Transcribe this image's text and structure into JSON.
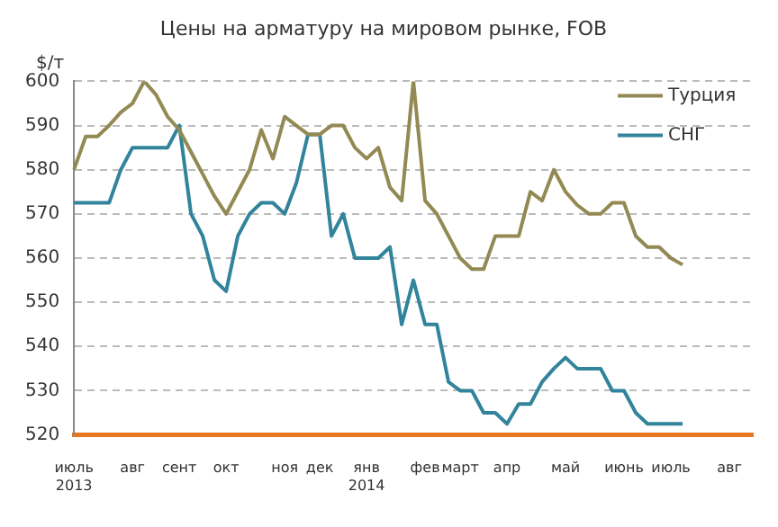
{
  "chart_data": {
    "type": "line",
    "title": "Цены на арматуру на мировом рынке, FOB",
    "ylabel": "$/т",
    "categories": [
      "июль 2013",
      null,
      null,
      null,
      null,
      "авг",
      null,
      null,
      null,
      "сент",
      null,
      null,
      null,
      "окт",
      null,
      null,
      null,
      null,
      "ноя",
      null,
      null,
      "дек",
      null,
      null,
      null,
      "янв 2014",
      null,
      null,
      null,
      null,
      "фев",
      null,
      null,
      "март",
      null,
      null,
      null,
      "апр",
      null,
      null,
      null,
      null,
      "май",
      null,
      null,
      null,
      null,
      "июнь",
      null,
      null,
      null,
      "июль",
      null,
      null,
      null,
      null,
      "авг",
      null,
      null
    ],
    "series": [
      {
        "name": "Турция",
        "color": "#938953",
        "values": [
          580,
          587.5,
          587.5,
          590,
          593,
          595,
          600,
          597,
          592,
          589,
          584,
          579,
          574,
          570,
          575,
          580,
          589,
          582.5,
          592,
          590,
          588,
          588,
          590,
          590,
          585,
          582.5,
          585,
          576,
          573,
          600,
          573,
          570,
          565,
          560,
          557.5,
          557.5,
          565,
          565,
          565,
          575,
          573,
          580,
          575,
          572,
          570,
          570,
          572.5,
          572.5,
          565,
          562.5,
          562.5,
          560,
          558.5,
          null,
          null,
          null,
          null,
          null,
          null
        ]
      },
      {
        "name": "СНГ",
        "color": "#31849b",
        "values": [
          572.5,
          572.5,
          572.5,
          572.5,
          580,
          585,
          585,
          585,
          585,
          590,
          570,
          565,
          555,
          552.5,
          565,
          570,
          572.5,
          572.5,
          570,
          577,
          588,
          588,
          565,
          570,
          560,
          560,
          560,
          562.5,
          545,
          555,
          545,
          545,
          532,
          530,
          530,
          525,
          525,
          522.5,
          527,
          527,
          532,
          535,
          537.5,
          535,
          535,
          535,
          530,
          530,
          525,
          522.5,
          522.5,
          522.5,
          522.5,
          null,
          null,
          null,
          null,
          null,
          null
        ]
      }
    ],
    "ylim": [
      520,
      600
    ],
    "yticks": [
      520,
      530,
      540,
      550,
      560,
      570,
      580,
      590,
      600
    ],
    "grid": "y",
    "legend": "top right",
    "marker": "none",
    "line_style": "solid"
  }
}
